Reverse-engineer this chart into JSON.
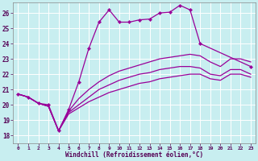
{
  "bg_color": "#c8eef0",
  "line_color": "#990099",
  "grid_color": "#ffffff",
  "xlabel": "Windchill (Refroidissement éolien,°C)",
  "xlim": [
    -0.5,
    23.5
  ],
  "ylim": [
    17.5,
    26.7
  ],
  "yticks": [
    18,
    19,
    20,
    21,
    22,
    23,
    24,
    25,
    26
  ],
  "xticks": [
    0,
    1,
    2,
    3,
    4,
    5,
    6,
    7,
    8,
    9,
    10,
    11,
    12,
    13,
    14,
    15,
    16,
    17,
    18,
    19,
    20,
    21,
    22,
    23
  ],
  "line_peaked": {
    "x": [
      0,
      1,
      2,
      3,
      4,
      5,
      6,
      7,
      8,
      9,
      10,
      11,
      12,
      13,
      14,
      15,
      16,
      17,
      18,
      23
    ],
    "y": [
      20.7,
      20.5,
      20.1,
      20.0,
      18.3,
      19.7,
      21.5,
      23.7,
      25.4,
      26.2,
      25.4,
      25.4,
      25.55,
      25.6,
      26.0,
      26.05,
      26.5,
      26.2,
      24.0,
      22.5
    ]
  },
  "line_upper": {
    "x": [
      0,
      1,
      2,
      3,
      4,
      5,
      6,
      7,
      8,
      9,
      10,
      11,
      12,
      13,
      14,
      15,
      16,
      17,
      18,
      19,
      20,
      21,
      22,
      23
    ],
    "y": [
      20.7,
      20.5,
      20.1,
      19.9,
      18.3,
      19.6,
      20.4,
      21.0,
      21.5,
      21.9,
      22.2,
      22.4,
      22.6,
      22.8,
      23.0,
      23.1,
      23.2,
      23.3,
      23.2,
      22.8,
      22.5,
      23.0,
      23.0,
      22.8
    ]
  },
  "line_mid": {
    "x": [
      0,
      1,
      2,
      3,
      4,
      5,
      6,
      7,
      8,
      9,
      10,
      11,
      12,
      13,
      14,
      15,
      16,
      17,
      18,
      19,
      20,
      21,
      22,
      23
    ],
    "y": [
      20.7,
      20.5,
      20.1,
      19.9,
      18.3,
      19.5,
      20.0,
      20.5,
      21.0,
      21.3,
      21.6,
      21.8,
      22.0,
      22.1,
      22.3,
      22.4,
      22.5,
      22.5,
      22.4,
      22.0,
      21.9,
      22.3,
      22.3,
      22.0
    ]
  },
  "line_lower": {
    "x": [
      0,
      1,
      2,
      3,
      4,
      5,
      6,
      7,
      8,
      9,
      10,
      11,
      12,
      13,
      14,
      15,
      16,
      17,
      18,
      19,
      20,
      21,
      22,
      23
    ],
    "y": [
      20.7,
      20.5,
      20.1,
      19.9,
      18.3,
      19.4,
      19.8,
      20.2,
      20.5,
      20.8,
      21.0,
      21.2,
      21.4,
      21.5,
      21.7,
      21.8,
      21.9,
      22.0,
      22.0,
      21.7,
      21.6,
      22.0,
      22.0,
      21.8
    ]
  },
  "marker_x": [
    0,
    1,
    2,
    3,
    4,
    5,
    6,
    7,
    8,
    9,
    10,
    11,
    12,
    13,
    14,
    15,
    16,
    17,
    18,
    23
  ],
  "marker_y_peaked": [
    20.7,
    20.5,
    20.1,
    20.0,
    18.3,
    19.7,
    21.5,
    23.7,
    25.4,
    26.2,
    25.4,
    25.4,
    25.55,
    25.6,
    26.0,
    26.05,
    26.5,
    26.2,
    24.0,
    22.5
  ]
}
